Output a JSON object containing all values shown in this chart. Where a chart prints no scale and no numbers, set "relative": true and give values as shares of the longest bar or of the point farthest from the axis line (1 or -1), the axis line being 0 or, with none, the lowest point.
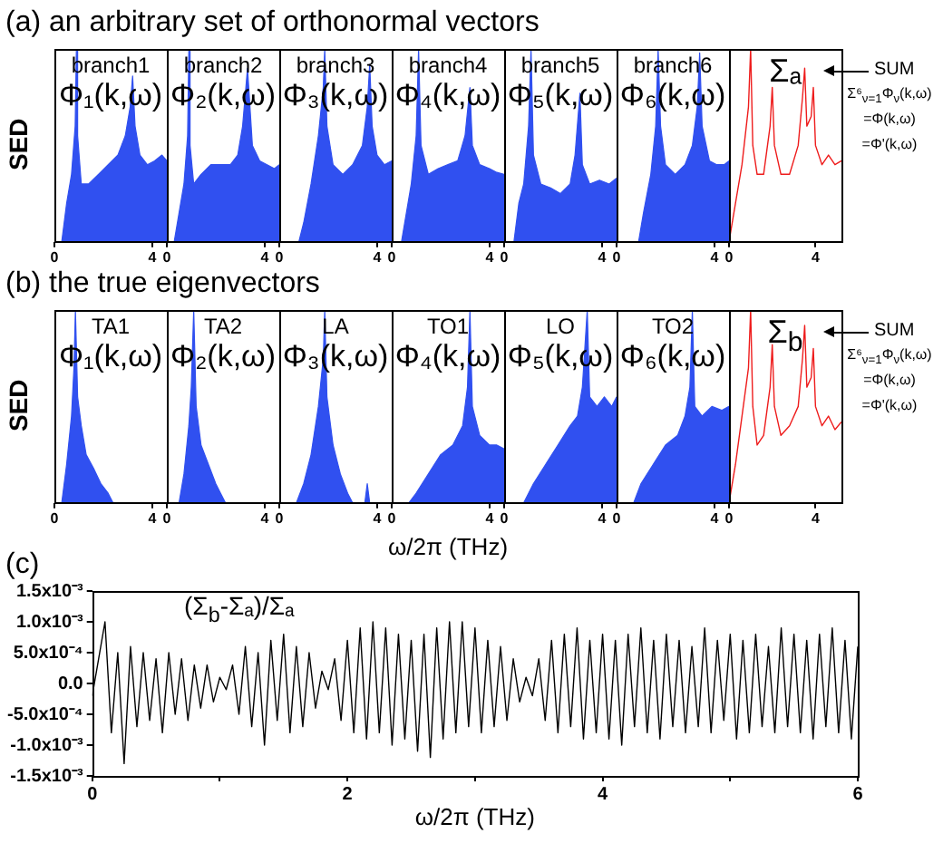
{
  "chart_data": [
    {
      "type": "area",
      "relative": true,
      "title": "(a) an arbitrary set of orthonormal vectors",
      "ylabel": "SED",
      "x": [
        0,
        0.3,
        0.5,
        0.7,
        0.85,
        0.9,
        0.95,
        1.1,
        1.4,
        1.8,
        2.2,
        2.6,
        2.9,
        3.1,
        3.2,
        3.3,
        3.5,
        3.8,
        4.1,
        4.4,
        4.6
      ],
      "values": [
        0,
        0,
        0.2,
        0.35,
        0.6,
        1.0,
        0.55,
        0.3,
        0.3,
        0.35,
        0.4,
        0.45,
        0.55,
        0.7,
        0.86,
        0.6,
        0.45,
        0.4,
        0.42,
        0.45,
        0.42
      ],
      "color": "#3050f0",
      "xlim": [
        0,
        4.6
      ],
      "xticks": [
        0,
        4
      ],
      "annotations": [
        "branch1",
        "Φ₁(k,ω)"
      ]
    },
    {
      "type": "area",
      "relative": true,
      "x": [
        0,
        0.3,
        0.5,
        0.7,
        0.85,
        0.9,
        0.95,
        1.1,
        1.4,
        1.8,
        2.2,
        2.6,
        2.9,
        3.1,
        3.2,
        3.3,
        3.5,
        3.8,
        4.1,
        4.4,
        4.6
      ],
      "values": [
        0,
        0,
        0.15,
        0.3,
        0.55,
        1.0,
        0.5,
        0.3,
        0.35,
        0.4,
        0.4,
        0.4,
        0.45,
        0.6,
        0.75,
        0.9,
        0.5,
        0.42,
        0.4,
        0.38,
        0.4
      ],
      "color": "#3050f0",
      "xlim": [
        0,
        4.6
      ],
      "xticks": [
        0,
        4
      ],
      "annotations": [
        "branch2",
        "Φ₂(k,ω)"
      ]
    },
    {
      "type": "area",
      "relative": true,
      "x": [
        0,
        0.8,
        1.0,
        1.3,
        1.6,
        1.8,
        1.86,
        1.95,
        2.2,
        2.6,
        3.0,
        3.4,
        3.6,
        3.7,
        3.8,
        4.0,
        4.3,
        4.6
      ],
      "values": [
        0,
        0,
        0.1,
        0.3,
        0.55,
        0.8,
        1.0,
        0.6,
        0.4,
        0.35,
        0.4,
        0.5,
        0.7,
        0.92,
        0.6,
        0.45,
        0.4,
        0.42
      ],
      "color": "#3050f0",
      "xlim": [
        0,
        4.6
      ],
      "xticks": [
        0,
        4
      ],
      "annotations": [
        "branch3",
        "Φ₃(k,ω)"
      ]
    },
    {
      "type": "area",
      "relative": true,
      "x": [
        0,
        0.4,
        0.6,
        0.8,
        1.0,
        1.1,
        1.2,
        1.5,
        1.9,
        2.3,
        2.7,
        3.0,
        3.2,
        3.3,
        3.6,
        4.0,
        4.3,
        4.6
      ],
      "values": [
        0,
        0,
        0.15,
        0.3,
        0.55,
        1.0,
        0.5,
        0.35,
        0.38,
        0.4,
        0.42,
        0.55,
        0.8,
        0.5,
        0.4,
        0.38,
        0.36,
        0.35
      ],
      "color": "#3050f0",
      "xlim": [
        0,
        4.6
      ],
      "xticks": [
        0,
        4
      ],
      "annotations": [
        "branch4",
        "Φ₄(k,ω)"
      ]
    },
    {
      "type": "area",
      "relative": true,
      "x": [
        0,
        0.4,
        0.6,
        0.8,
        1.0,
        1.1,
        1.2,
        1.5,
        1.9,
        2.3,
        2.7,
        2.9,
        3.1,
        3.2,
        3.5,
        3.9,
        4.3,
        4.6
      ],
      "values": [
        0,
        0,
        0.2,
        0.3,
        0.6,
        1.0,
        0.45,
        0.3,
        0.28,
        0.25,
        0.3,
        0.45,
        0.77,
        0.4,
        0.3,
        0.32,
        0.3,
        0.33
      ],
      "color": "#3050f0",
      "xlim": [
        0,
        4.6
      ],
      "xticks": [
        0,
        4
      ],
      "annotations": [
        "branch5",
        "Φ₅(k,ω)"
      ]
    },
    {
      "type": "area",
      "relative": true,
      "x": [
        0,
        0.9,
        1.1,
        1.4,
        1.6,
        1.7,
        1.8,
        2.0,
        2.4,
        2.8,
        3.1,
        3.3,
        3.4,
        3.5,
        3.8,
        4.1,
        4.4,
        4.6
      ],
      "values": [
        0,
        0,
        0.15,
        0.35,
        0.6,
        1.0,
        0.6,
        0.4,
        0.35,
        0.4,
        0.5,
        0.7,
        0.98,
        0.6,
        0.42,
        0.4,
        0.4,
        0.42
      ],
      "color": "#3050f0",
      "xlim": [
        0,
        4.6
      ],
      "xticks": [
        0,
        4
      ],
      "annotations": [
        "branch6",
        "Φ₆(k,ω)"
      ]
    },
    {
      "type": "line",
      "relative": true,
      "x": [
        0,
        0.3,
        0.6,
        0.9,
        1.0,
        1.1,
        1.3,
        1.6,
        1.9,
        2.0,
        2.1,
        2.4,
        2.8,
        3.2,
        3.4,
        3.5,
        3.6,
        3.8,
        3.9,
        4.0,
        4.3,
        4.6,
        4.9,
        5.2
      ],
      "values": [
        0,
        0.2,
        0.4,
        0.7,
        1.0,
        0.5,
        0.35,
        0.35,
        0.6,
        0.8,
        0.5,
        0.35,
        0.35,
        0.5,
        0.75,
        0.9,
        0.6,
        0.65,
        0.8,
        0.5,
        0.4,
        0.45,
        0.4,
        0.42
      ],
      "color": "#ee1c1c",
      "xlim": [
        0,
        5.2
      ],
      "xticks": [
        0,
        4
      ],
      "annotations": [
        "Σₐ",
        "SUM",
        "Σ⁶$_{ν=1}$Φ$_{ν}$(k,ω)",
        "=Φ(k,ω)",
        "=Φ'(k,ω)"
      ]
    },
    {
      "type": "area",
      "relative": true,
      "title": "(b) the true eigenvectors",
      "ylabel": "SED",
      "x": [
        0,
        0.3,
        0.5,
        0.7,
        0.8,
        0.86,
        0.95,
        1.1,
        1.3,
        1.6,
        1.9,
        2.2,
        2.4,
        4.6
      ],
      "values": [
        0,
        0,
        0.2,
        0.45,
        0.7,
        1.0,
        0.55,
        0.4,
        0.25,
        0.18,
        0.1,
        0.05,
        0,
        0
      ],
      "color": "#3050f0",
      "xlim": [
        0,
        4.6
      ],
      "xticks": [
        0,
        4
      ],
      "annotations": [
        "TA1",
        "Φ₁(k,ω)"
      ]
    },
    {
      "type": "area",
      "relative": true,
      "x": [
        0,
        0.5,
        0.7,
        0.9,
        1.0,
        1.1,
        1.2,
        1.4,
        1.7,
        2.0,
        2.2,
        2.4,
        4.6
      ],
      "values": [
        0,
        0,
        0.15,
        0.4,
        0.6,
        1.0,
        0.5,
        0.3,
        0.2,
        0.1,
        0.05,
        0,
        0
      ],
      "color": "#3050f0",
      "xlim": [
        0,
        4.6
      ],
      "xticks": [
        0,
        4
      ],
      "annotations": [
        "TA2",
        "Φ₂(k,ω)"
      ]
    },
    {
      "type": "area",
      "relative": true,
      "x": [
        0,
        0.7,
        1.0,
        1.3,
        1.6,
        1.8,
        1.86,
        1.95,
        2.2,
        2.5,
        2.8,
        3.0,
        3.5,
        3.6,
        3.7,
        3.9,
        4.6
      ],
      "values": [
        0,
        0,
        0.1,
        0.25,
        0.5,
        0.75,
        1.0,
        0.55,
        0.3,
        0.15,
        0.05,
        0,
        0,
        0.1,
        0,
        0,
        0
      ],
      "color": "#3050f0",
      "xlim": [
        0,
        4.6
      ],
      "xticks": [
        0,
        4
      ],
      "annotations": [
        "LA",
        "Φ₃(k,ω)"
      ]
    },
    {
      "type": "area",
      "relative": true,
      "xlabel": "ω/2π (THz)",
      "x": [
        0,
        0.7,
        1.0,
        1.5,
        2.0,
        2.5,
        2.9,
        3.1,
        3.2,
        3.3,
        3.6,
        4.0,
        4.3,
        4.6
      ],
      "values": [
        0,
        0,
        0.05,
        0.15,
        0.25,
        0.3,
        0.4,
        0.6,
        1.0,
        0.5,
        0.35,
        0.3,
        0.3,
        0.28
      ],
      "color": "#3050f0",
      "xlim": [
        0,
        4.6
      ],
      "xticks": [
        0,
        4
      ],
      "annotations": [
        "TO1",
        "Φ₄(k,ω)"
      ]
    },
    {
      "type": "area",
      "relative": true,
      "x": [
        0,
        0.8,
        1.2,
        1.7,
        2.2,
        2.7,
        3.0,
        3.2,
        3.4,
        3.5,
        3.8,
        4.1,
        4.4,
        4.6
      ],
      "values": [
        0,
        0,
        0.1,
        0.2,
        0.3,
        0.4,
        0.45,
        0.6,
        1.0,
        0.55,
        0.5,
        0.55,
        0.5,
        0.55
      ],
      "color": "#3050f0",
      "xlim": [
        0,
        4.6
      ],
      "xticks": [
        0,
        4
      ],
      "annotations": [
        "LO",
        "Φ₅(k,ω)"
      ]
    },
    {
      "type": "area",
      "relative": true,
      "x": [
        0,
        0.7,
        1.0,
        1.5,
        2.0,
        2.5,
        2.8,
        3.0,
        3.1,
        3.2,
        3.5,
        3.9,
        4.3,
        4.6
      ],
      "values": [
        0,
        0,
        0.1,
        0.2,
        0.3,
        0.35,
        0.45,
        0.6,
        1.0,
        0.5,
        0.45,
        0.5,
        0.48,
        0.5
      ],
      "color": "#3050f0",
      "xlim": [
        0,
        4.6
      ],
      "xticks": [
        0,
        4
      ],
      "annotations": [
        "TO2",
        "Φ₆(k,ω)"
      ]
    },
    {
      "type": "line",
      "relative": true,
      "x": [
        0,
        0.3,
        0.6,
        0.9,
        1.0,
        1.1,
        1.3,
        1.6,
        1.9,
        2.0,
        2.1,
        2.4,
        2.8,
        3.2,
        3.4,
        3.5,
        3.6,
        3.8,
        3.9,
        4.0,
        4.3,
        4.6,
        4.9,
        5.2
      ],
      "values": [
        0,
        0.2,
        0.45,
        0.7,
        1.0,
        0.5,
        0.3,
        0.35,
        0.6,
        0.82,
        0.5,
        0.35,
        0.4,
        0.5,
        0.75,
        0.92,
        0.6,
        0.65,
        0.8,
        0.5,
        0.4,
        0.45,
        0.38,
        0.42
      ],
      "color": "#ee1c1c",
      "xlim": [
        0,
        5.2
      ],
      "xticks": [
        0,
        4
      ],
      "annotations": [
        "Σ$_{b}$",
        "SUM",
        "Σ⁶$_{ν=1}$Φ$_{ν}$(k,ω)",
        "=Φ(k,ω)",
        "=Φ'(k,ω)"
      ]
    },
    {
      "type": "line",
      "title": "(c)",
      "xlabel": "ω/2π (THz)",
      "color": "#000000",
      "xlim": [
        0,
        6
      ],
      "xticks": [
        0,
        {
          "value": 1,
          "label": null
        },
        2,
        {
          "value": 3,
          "label": null
        },
        4,
        {
          "value": 5,
          "label": null
        },
        6
      ],
      "ylim": [
        -0.0015,
        0.0015
      ],
      "yticks": [
        {
          "value": -0.0015,
          "label": "-1.5x10⁻³"
        },
        {
          "value": -0.001,
          "label": "-1.0x10⁻³"
        },
        {
          "value": -0.0005,
          "label": "-5.0x10⁻⁴"
        },
        {
          "value": 0,
          "label": "0.0"
        },
        {
          "value": 0.0005,
          "label": "5.0x10⁻⁴"
        },
        {
          "value": 0.001,
          "label": "1.0x10⁻³"
        },
        {
          "value": 0.0015,
          "label": "1.5x10⁻³"
        }
      ],
      "annotations": [
        "(Σ$_{b}$-Σₐ)/Σₐ"
      ],
      "x": [
        0,
        0.05,
        0.1,
        0.15,
        0.2,
        0.25,
        0.3,
        0.35,
        0.4,
        0.45,
        0.5,
        0.55,
        0.6,
        0.65,
        0.7,
        0.75,
        0.8,
        0.85,
        0.9,
        0.95,
        1.0,
        1.05,
        1.1,
        1.15,
        1.2,
        1.25,
        1.3,
        1.35,
        1.4,
        1.45,
        1.5,
        1.55,
        1.6,
        1.65,
        1.7,
        1.75,
        1.8,
        1.85,
        1.9,
        1.95,
        2.0,
        2.05,
        2.1,
        2.15,
        2.2,
        2.25,
        2.3,
        2.35,
        2.4,
        2.45,
        2.5,
        2.55,
        2.6,
        2.65,
        2.7,
        2.75,
        2.8,
        2.85,
        2.9,
        2.95,
        3.0,
        3.05,
        3.1,
        3.15,
        3.2,
        3.25,
        3.3,
        3.35,
        3.4,
        3.45,
        3.5,
        3.55,
        3.6,
        3.65,
        3.7,
        3.75,
        3.8,
        3.85,
        3.9,
        3.95,
        4.0,
        4.05,
        4.1,
        4.15,
        4.2,
        4.25,
        4.3,
        4.35,
        4.4,
        4.45,
        4.5,
        4.55,
        4.6,
        4.65,
        4.7,
        4.75,
        4.8,
        4.85,
        4.9,
        4.95,
        5.0,
        5.05,
        5.1,
        5.15,
        5.2,
        5.25,
        5.3,
        5.35,
        5.4,
        5.45,
        5.5,
        5.55,
        5.6,
        5.65,
        5.7,
        5.75,
        5.8,
        5.85,
        5.9,
        5.95,
        6.0
      ],
      "values": [
        -0.0002,
        0.0004,
        0.001,
        -0.0008,
        0.0005,
        -0.0013,
        0.0006,
        -0.0007,
        0.0005,
        -0.0006,
        0.0004,
        -0.0008,
        0.0005,
        -0.0005,
        0.0004,
        -0.0006,
        0.0003,
        -0.0004,
        0.0003,
        -0.0003,
        0.0001,
        -0.0001,
        0.0003,
        -0.0005,
        0.0006,
        -0.0007,
        0.0005,
        -0.001,
        0.0007,
        -0.0006,
        0.0008,
        -0.0008,
        0.0006,
        -0.0007,
        0.0005,
        -0.0004,
        0.0002,
        -0.0001,
        0.0004,
        -0.0006,
        0.0007,
        -0.0008,
        0.0009,
        -0.0009,
        0.001,
        -0.0008,
        0.0009,
        -0.001,
        0.0008,
        -0.0009,
        0.0007,
        -0.0011,
        0.0008,
        -0.0012,
        0.0009,
        -0.0009,
        0.001,
        -0.0008,
        0.001,
        -0.0007,
        0.0009,
        -0.0008,
        0.0007,
        -0.0007,
        0.0006,
        -0.0006,
        0.0004,
        -0.0003,
        0.0001,
        -0.0002,
        0.0004,
        -0.0006,
        0.0007,
        -0.0008,
        0.0008,
        -0.0007,
        0.0009,
        -0.0009,
        0.0007,
        -0.0008,
        0.0008,
        -0.0009,
        0.0007,
        -0.001,
        0.0008,
        -0.0007,
        0.0009,
        -0.0008,
        0.0007,
        -0.0009,
        0.0008,
        -0.0007,
        0.0007,
        -0.0008,
        0.0006,
        -0.0007,
        0.0009,
        -0.0008,
        0.0007,
        -0.0006,
        0.0008,
        -0.0009,
        0.0007,
        -0.0008,
        0.0008,
        -0.0007,
        0.0006,
        -0.0008,
        0.0009,
        -0.0007,
        0.0008,
        -0.0008,
        0.0007,
        -0.0009,
        0.0008,
        -0.0007,
        0.0009,
        -0.0008,
        0.0007,
        -0.0009,
        0.0006
      ]
    }
  ]
}
